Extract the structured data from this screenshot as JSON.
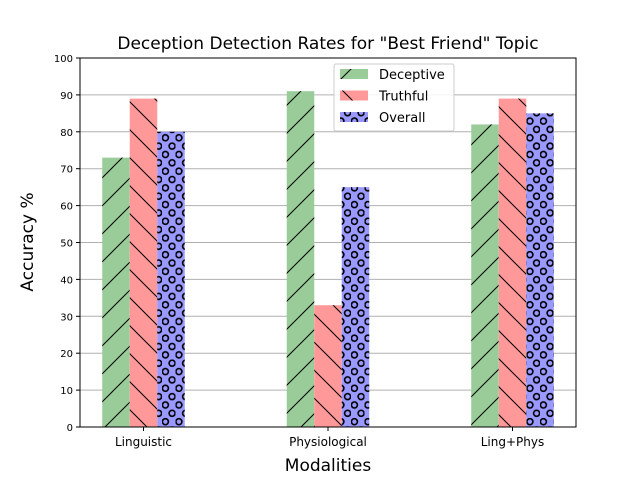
{
  "chart_data": {
    "type": "bar",
    "title": "Deception Detection Rates for \"Best Friend\" Topic",
    "xlabel": "Modalities",
    "ylabel": "Accuracy %",
    "categories": [
      "Linguistic",
      "Physiological",
      "Ling+Phys"
    ],
    "series": [
      {
        "name": "Deceptive",
        "values": [
          73,
          91,
          82
        ],
        "color": "#99cc99",
        "hatch": "forward-slash"
      },
      {
        "name": "Truthful",
        "values": [
          89,
          33,
          89
        ],
        "color": "#ff9999",
        "hatch": "back-slash"
      },
      {
        "name": "Overall",
        "values": [
          80,
          65,
          85
        ],
        "color": "#9999ff",
        "hatch": "circles"
      }
    ],
    "ylim": [
      0,
      100
    ],
    "yticks": [
      0,
      10,
      20,
      30,
      40,
      50,
      60,
      70,
      80,
      90,
      100
    ],
    "grid": "horizontal",
    "legend_position": "top-center"
  }
}
